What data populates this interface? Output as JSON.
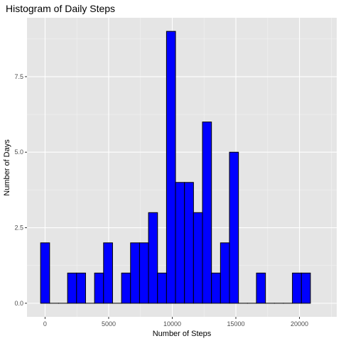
{
  "chart_data": {
    "type": "bar",
    "title": "Histogram of Daily Steps",
    "xlabel": "Number of Steps",
    "ylabel": "Number of Days",
    "bin_width": 707,
    "bins": [
      {
        "start": -350,
        "count": 2
      },
      {
        "start": 357,
        "count": 0
      },
      {
        "start": 1064,
        "count": 0
      },
      {
        "start": 1771,
        "count": 1
      },
      {
        "start": 2478,
        "count": 1
      },
      {
        "start": 3185,
        "count": 0
      },
      {
        "start": 3892,
        "count": 1
      },
      {
        "start": 4599,
        "count": 2
      },
      {
        "start": 5306,
        "count": 0
      },
      {
        "start": 6013,
        "count": 1
      },
      {
        "start": 6720,
        "count": 2
      },
      {
        "start": 7427,
        "count": 2
      },
      {
        "start": 8134,
        "count": 3
      },
      {
        "start": 8841,
        "count": 1
      },
      {
        "start": 9548,
        "count": 9
      },
      {
        "start": 10255,
        "count": 4
      },
      {
        "start": 10962,
        "count": 4
      },
      {
        "start": 11669,
        "count": 3
      },
      {
        "start": 12376,
        "count": 6
      },
      {
        "start": 13083,
        "count": 1
      },
      {
        "start": 13790,
        "count": 2
      },
      {
        "start": 14497,
        "count": 5
      },
      {
        "start": 15204,
        "count": 0
      },
      {
        "start": 15911,
        "count": 0
      },
      {
        "start": 16618,
        "count": 1
      },
      {
        "start": 17325,
        "count": 0
      },
      {
        "start": 18032,
        "count": 0
      },
      {
        "start": 18739,
        "count": 0
      },
      {
        "start": 19446,
        "count": 1
      },
      {
        "start": 20153,
        "count": 1
      }
    ],
    "xlim": [
      -1420,
      22930
    ],
    "ylim": [
      -0.45,
      9.45
    ],
    "x_ticks": [
      {
        "value": 0,
        "label": "0"
      },
      {
        "value": 5000,
        "label": "5000"
      },
      {
        "value": 10000,
        "label": "10000"
      },
      {
        "value": 15000,
        "label": "15000"
      },
      {
        "value": 20000,
        "label": "20000"
      }
    ],
    "y_ticks": [
      {
        "value": 0,
        "label": "0.0"
      },
      {
        "value": 2.5,
        "label": "2.5"
      },
      {
        "value": 5,
        "label": "5.0"
      },
      {
        "value": 7.5,
        "label": "7.5"
      }
    ],
    "grid": true,
    "colors": {
      "panel": "#e5e5e5",
      "grid_major": "#ffffff",
      "grid_minor": "#f2f2f2",
      "bar_fill": "#0000ff",
      "bar_outline": "#000000",
      "tick": "#333333"
    }
  }
}
